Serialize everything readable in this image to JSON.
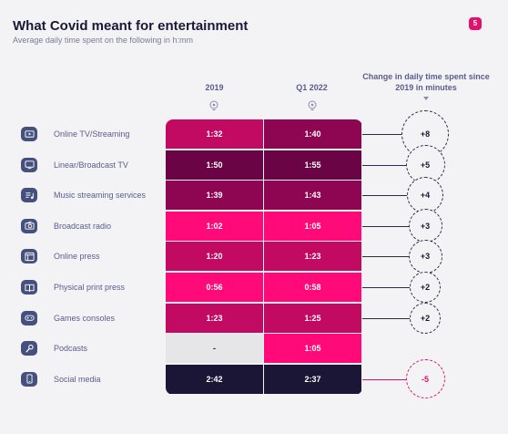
{
  "header": {
    "title": "What Covid meant for entertainment",
    "subtitle": "Average daily time spent on the following in h:mm",
    "page_number": "5"
  },
  "columns": {
    "col1": "2019",
    "col2": "Q1 2022",
    "change": "Change in daily time spent since 2019 in minutes"
  },
  "colors": {
    "hot_pink": "#ff0a78",
    "magenta": "#c20a62",
    "plum": "#8e0552",
    "deep_plum": "#6a0445",
    "navy": "#1b1536",
    "empty": "#e6e6e9",
    "accent": "#e0126e"
  },
  "chart_data": {
    "type": "table",
    "title": "What Covid meant for entertainment",
    "subtitle": "Average daily time spent on the following in h:mm",
    "columns": [
      "2019",
      "Q1 2022",
      "Change in daily time spent since 2019 in minutes"
    ],
    "rows": [
      {
        "label": "Online TV/Streaming",
        "icon": "play-screen-icon",
        "v2019": "1:32",
        "v2022": "1:40",
        "change": "+8",
        "c2019": "#c20a62",
        "c2022": "#8e0552"
      },
      {
        "label": "Linear/Broadcast TV",
        "icon": "tv-icon",
        "v2019": "1:50",
        "v2022": "1:55",
        "change": "+5",
        "c2019": "#6a0445",
        "c2022": "#6a0445"
      },
      {
        "label": "Music streaming services",
        "icon": "music-list-icon",
        "v2019": "1:39",
        "v2022": "1:43",
        "change": "+4",
        "c2019": "#8e0552",
        "c2022": "#8e0552"
      },
      {
        "label": "Broadcast radio",
        "icon": "radio-icon",
        "v2019": "1:02",
        "v2022": "1:05",
        "change": "+3",
        "c2019": "#ff0a78",
        "c2022": "#ff0a78"
      },
      {
        "label": "Online press",
        "icon": "browser-icon",
        "v2019": "1:20",
        "v2022": "1:23",
        "change": "+3",
        "c2019": "#c20a62",
        "c2022": "#c20a62"
      },
      {
        "label": "Physical print press",
        "icon": "book-icon",
        "v2019": "0:56",
        "v2022": "0:58",
        "change": "+2",
        "c2019": "#ff0a78",
        "c2022": "#ff0a78"
      },
      {
        "label": "Games consoles",
        "icon": "gamepad-icon",
        "v2019": "1:23",
        "v2022": "1:25",
        "change": "+2",
        "c2019": "#c20a62",
        "c2022": "#c20a62"
      },
      {
        "label": "Podcasts",
        "icon": "microphone-icon",
        "v2019": "-",
        "v2022": "1:05",
        "change": "",
        "c2019": "#e6e6e9",
        "c2022": "#ff0a78"
      },
      {
        "label": "Social media",
        "icon": "phone-icon",
        "v2019": "2:42",
        "v2022": "2:37",
        "change": "-5",
        "c2019": "#1b1536",
        "c2022": "#1b1536"
      }
    ]
  }
}
